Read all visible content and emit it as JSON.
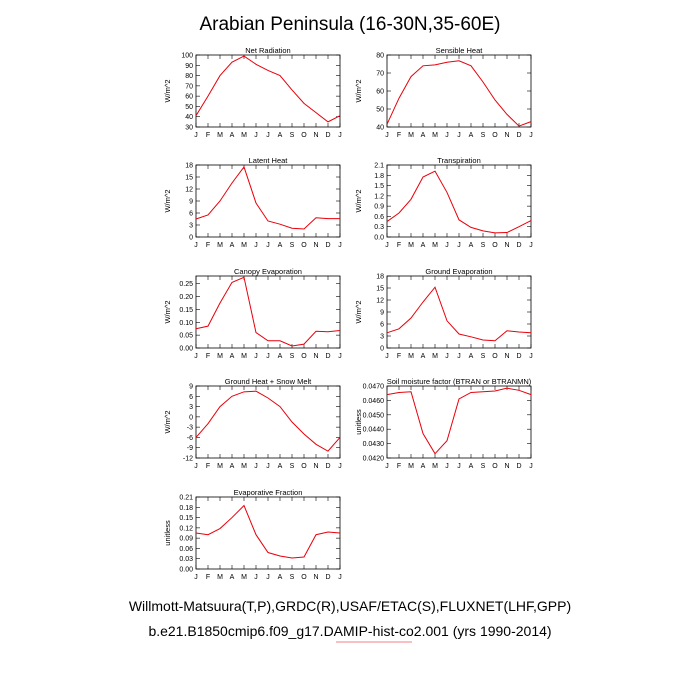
{
  "title": "Arabian Peninsula (16-30N,35-60E)",
  "footer": {
    "line1": "Willmott-Matsuura(T,P),GRDC(R),USAF/ETAC(S),FLUXNET(LHF,GPP)",
    "line2": "b.e21.B1850cmip6.f09_g17.DAMIP-hist-co2.001 (yrs 1990-2014)"
  },
  "colors": {
    "series": "#e8000b",
    "frame": "#000000"
  },
  "chart_data": [
    {
      "type": "line",
      "title": "Net Radiation",
      "ylabel": "W/m^2",
      "categories": [
        "J",
        "F",
        "M",
        "A",
        "M",
        "J",
        "J",
        "A",
        "S",
        "O",
        "N",
        "D",
        "J"
      ],
      "values": [
        41,
        60,
        80,
        93,
        99,
        91,
        85,
        80,
        66,
        53,
        44,
        35,
        41
      ],
      "ylim": [
        30,
        100
      ],
      "yticks": [
        "30",
        "40",
        "50",
        "60",
        "70",
        "80",
        "90",
        "100"
      ],
      "ytick_values": [
        30,
        40,
        50,
        60,
        70,
        80,
        90,
        100
      ]
    },
    {
      "type": "line",
      "title": "Sensible Heat",
      "ylabel": "W/m^2",
      "categories": [
        "J",
        "F",
        "M",
        "A",
        "M",
        "J",
        "J",
        "A",
        "S",
        "O",
        "N",
        "D",
        "J"
      ],
      "values": [
        41.5,
        56,
        68,
        74,
        74.5,
        76,
        76.8,
        74,
        65,
        55,
        47,
        40.5,
        43
      ],
      "ylim": [
        40,
        80
      ],
      "yticks": [
        "40",
        "50",
        "60",
        "70",
        "80"
      ],
      "ytick_values": [
        40,
        50,
        60,
        70,
        80
      ]
    },
    {
      "type": "line",
      "title": "Latent Heat",
      "ylabel": "W/m^2",
      "categories": [
        "J",
        "F",
        "M",
        "A",
        "M",
        "J",
        "J",
        "A",
        "S",
        "O",
        "N",
        "D",
        "J"
      ],
      "values": [
        4.5,
        5.5,
        9,
        13.5,
        17.5,
        8.5,
        4,
        3.2,
        2.2,
        2.0,
        4.8,
        4.6,
        4.6
      ],
      "ylim": [
        0,
        18
      ],
      "yticks": [
        "0",
        "3",
        "6",
        "9",
        "12",
        "15",
        "18"
      ],
      "ytick_values": [
        0,
        3,
        6,
        9,
        12,
        15,
        18
      ]
    },
    {
      "type": "line",
      "title": "Transpiration",
      "ylabel": "W/m^2",
      "categories": [
        "J",
        "F",
        "M",
        "A",
        "M",
        "J",
        "J",
        "A",
        "S",
        "O",
        "N",
        "D",
        "J"
      ],
      "values": [
        0.45,
        0.7,
        1.1,
        1.75,
        1.92,
        1.3,
        0.5,
        0.28,
        0.18,
        0.12,
        0.13,
        0.3,
        0.48
      ],
      "ylim": [
        0.0,
        2.1
      ],
      "yticks": [
        "0.0",
        "0.3",
        "0.6",
        "0.9",
        "1.2",
        "1.5",
        "1.8",
        "2.1"
      ],
      "ytick_values": [
        0.0,
        0.3,
        0.6,
        0.9,
        1.2,
        1.5,
        1.8,
        2.1
      ]
    },
    {
      "type": "line",
      "title": "Canopy Evaporation",
      "ylabel": "W/m^2",
      "categories": [
        "J",
        "F",
        "M",
        "A",
        "M",
        "J",
        "J",
        "A",
        "S",
        "O",
        "N",
        "D",
        "J"
      ],
      "values": [
        0.075,
        0.085,
        0.175,
        0.255,
        0.275,
        0.06,
        0.028,
        0.028,
        0.008,
        0.015,
        0.065,
        0.063,
        0.068
      ],
      "ylim": [
        0.0,
        0.28
      ],
      "yticks": [
        "0.00",
        "0.05",
        "0.10",
        "0.15",
        "0.20",
        "0.25"
      ],
      "ytick_values": [
        0.0,
        0.05,
        0.1,
        0.15,
        0.2,
        0.25
      ]
    },
    {
      "type": "line",
      "title": "Ground Evaporation",
      "ylabel": "W/m^2",
      "categories": [
        "J",
        "F",
        "M",
        "A",
        "M",
        "J",
        "J",
        "A",
        "S",
        "O",
        "N",
        "D",
        "J"
      ],
      "values": [
        3.8,
        4.8,
        7.5,
        11.5,
        15.2,
        6.8,
        3.5,
        2.8,
        2.0,
        1.8,
        4.3,
        4.0,
        3.8
      ],
      "ylim": [
        0,
        18
      ],
      "yticks": [
        "0",
        "3",
        "6",
        "9",
        "12",
        "15",
        "18"
      ],
      "ytick_values": [
        0,
        3,
        6,
        9,
        12,
        15,
        18
      ]
    },
    {
      "type": "line",
      "title": "Ground Heat + Snow Melt",
      "ylabel": "W/m^2",
      "categories": [
        "J",
        "F",
        "M",
        "A",
        "M",
        "J",
        "J",
        "A",
        "S",
        "O",
        "N",
        "D",
        "J"
      ],
      "values": [
        -6,
        -2,
        3,
        6,
        7.3,
        7.5,
        5.5,
        3,
        -1.5,
        -5,
        -8,
        -10,
        -6
      ],
      "ylim": [
        -12,
        9
      ],
      "yticks": [
        "-12",
        "-9",
        "-6",
        "-3",
        "0",
        "3",
        "6",
        "9"
      ],
      "ytick_values": [
        -12,
        -9,
        -6,
        -3,
        0,
        3,
        6,
        9
      ]
    },
    {
      "type": "line",
      "title": "Soil moisture factor (BTRAN or BTRANMN)",
      "ylabel": "unitless",
      "categories": [
        "J",
        "F",
        "M",
        "A",
        "M",
        "J",
        "J",
        "A",
        "S",
        "O",
        "N",
        "D",
        "J"
      ],
      "values": [
        0.0464,
        0.04655,
        0.0466,
        0.0437,
        0.0423,
        0.0432,
        0.0461,
        0.04655,
        0.0466,
        0.04665,
        0.04685,
        0.0467,
        0.0464
      ],
      "ylim": [
        0.042,
        0.047
      ],
      "yticks": [
        "0.0420",
        "0.0430",
        "0.0440",
        "0.0450",
        "0.0460",
        "0.0470"
      ],
      "ytick_values": [
        0.042,
        0.043,
        0.044,
        0.045,
        0.046,
        0.047
      ]
    },
    {
      "type": "line",
      "title": "Evaporative Fraction",
      "ylabel": "unitless",
      "categories": [
        "J",
        "F",
        "M",
        "A",
        "M",
        "J",
        "J",
        "A",
        "S",
        "O",
        "N",
        "D",
        "J"
      ],
      "values": [
        0.105,
        0.1,
        0.118,
        0.15,
        0.185,
        0.1,
        0.048,
        0.038,
        0.032,
        0.035,
        0.1,
        0.108,
        0.105
      ],
      "ylim": [
        0.0,
        0.21
      ],
      "yticks": [
        "0.00",
        "0.03",
        "0.06",
        "0.09",
        "0.12",
        "0.15",
        "0.18",
        "0.21"
      ],
      "ytick_values": [
        0.0,
        0.03,
        0.06,
        0.09,
        0.12,
        0.15,
        0.18,
        0.21
      ]
    }
  ]
}
